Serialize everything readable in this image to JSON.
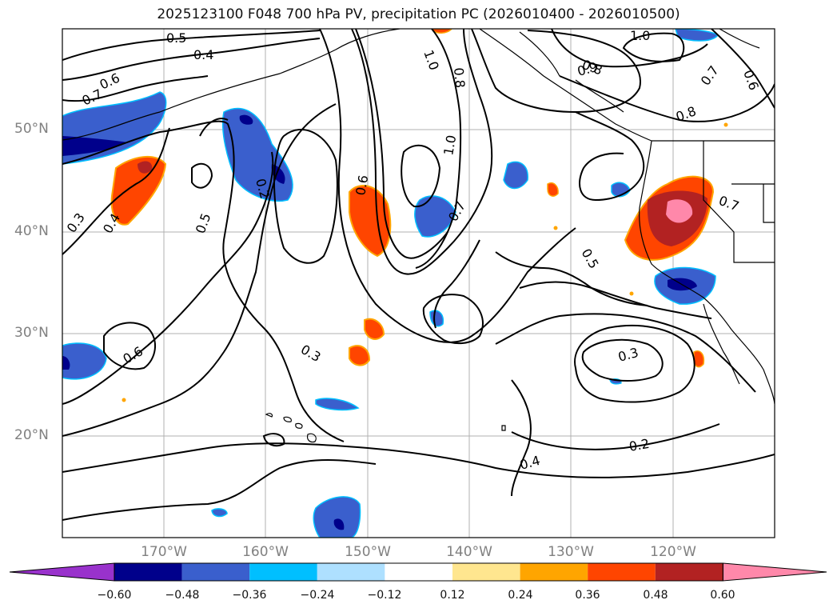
{
  "title": "2025123100 F048 700 hPa PV, precipitation PC (2026010400 - 2026010500)",
  "map": {
    "lat_ticks": [
      "50°N",
      "40°N",
      "30°N",
      "20°N"
    ],
    "lon_ticks": [
      "170°W",
      "160°W",
      "150°W",
      "140°W",
      "130°W",
      "120°W"
    ],
    "pv_contour_labels": [
      "0.5",
      "0.4",
      "0.6",
      "0.7",
      "0.3",
      "0.4",
      "0.5",
      "0.2",
      "0.6",
      "0.3",
      "1.0",
      "0.8",
      "0.6",
      "1.0",
      "0.7",
      "0.5",
      "0.8",
      "0.9",
      "1.0",
      "0.8",
      "0.7",
      "0.6",
      "0.7",
      "0.3",
      "0.2",
      "0.4"
    ]
  },
  "colorbar": {
    "ticks": [
      "−0.60",
      "−0.48",
      "−0.36",
      "−0.24",
      "−0.12",
      "0.12",
      "0.24",
      "0.36",
      "0.48",
      "0.60"
    ],
    "colors": [
      "#9932cc",
      "#00008b",
      "#3a5fcd",
      "#00bfff",
      "#aee0ff",
      "#ffffff",
      "#ffe68f",
      "#ffa500",
      "#ff4500",
      "#b22222",
      "#ff88aa"
    ]
  },
  "colors": {
    "grid": "#b0b0b0",
    "contour": "#000000",
    "coast": "#000000"
  }
}
